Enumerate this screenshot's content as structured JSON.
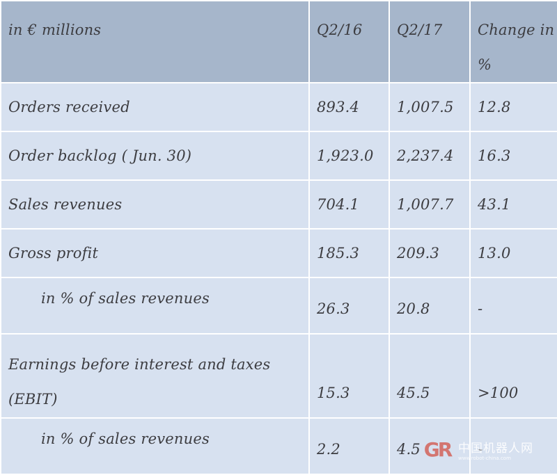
{
  "table": {
    "headers": [
      "in € millions",
      "Q2/16",
      "Q2/17",
      "Change in %"
    ],
    "rows": [
      {
        "label": "Orders received",
        "q2_16": "893.4",
        "q2_17": "1,007.5",
        "change": "12.8"
      },
      {
        "label": "Order backlog ( Jun. 30)",
        "q2_16": "1,923.0",
        "q2_17": "2,237.4",
        "change": "16.3"
      },
      {
        "label": "Sales revenues",
        "q2_16": "704.1",
        "q2_17": "1,007.7",
        "change": "43.1"
      },
      {
        "label": "Gross profit",
        "q2_16": "185.3",
        "q2_17": "209.3",
        "change": "13.0"
      },
      {
        "label": "in % of sales revenues",
        "q2_16": "26.3",
        "q2_17": "20.8",
        "change": "-"
      },
      {
        "label": "Earnings before interest and taxes (EBIT)",
        "q2_16": "15.3",
        "q2_17": "45.5",
        "change": ">100"
      },
      {
        "label": "in % of sales revenues",
        "q2_16": "2.2",
        "q2_17": "4.5",
        "change": "-"
      }
    ]
  },
  "watermark": {
    "logo": "GR",
    "text": "中国机器人网",
    "url": "www.robot-china.com"
  }
}
